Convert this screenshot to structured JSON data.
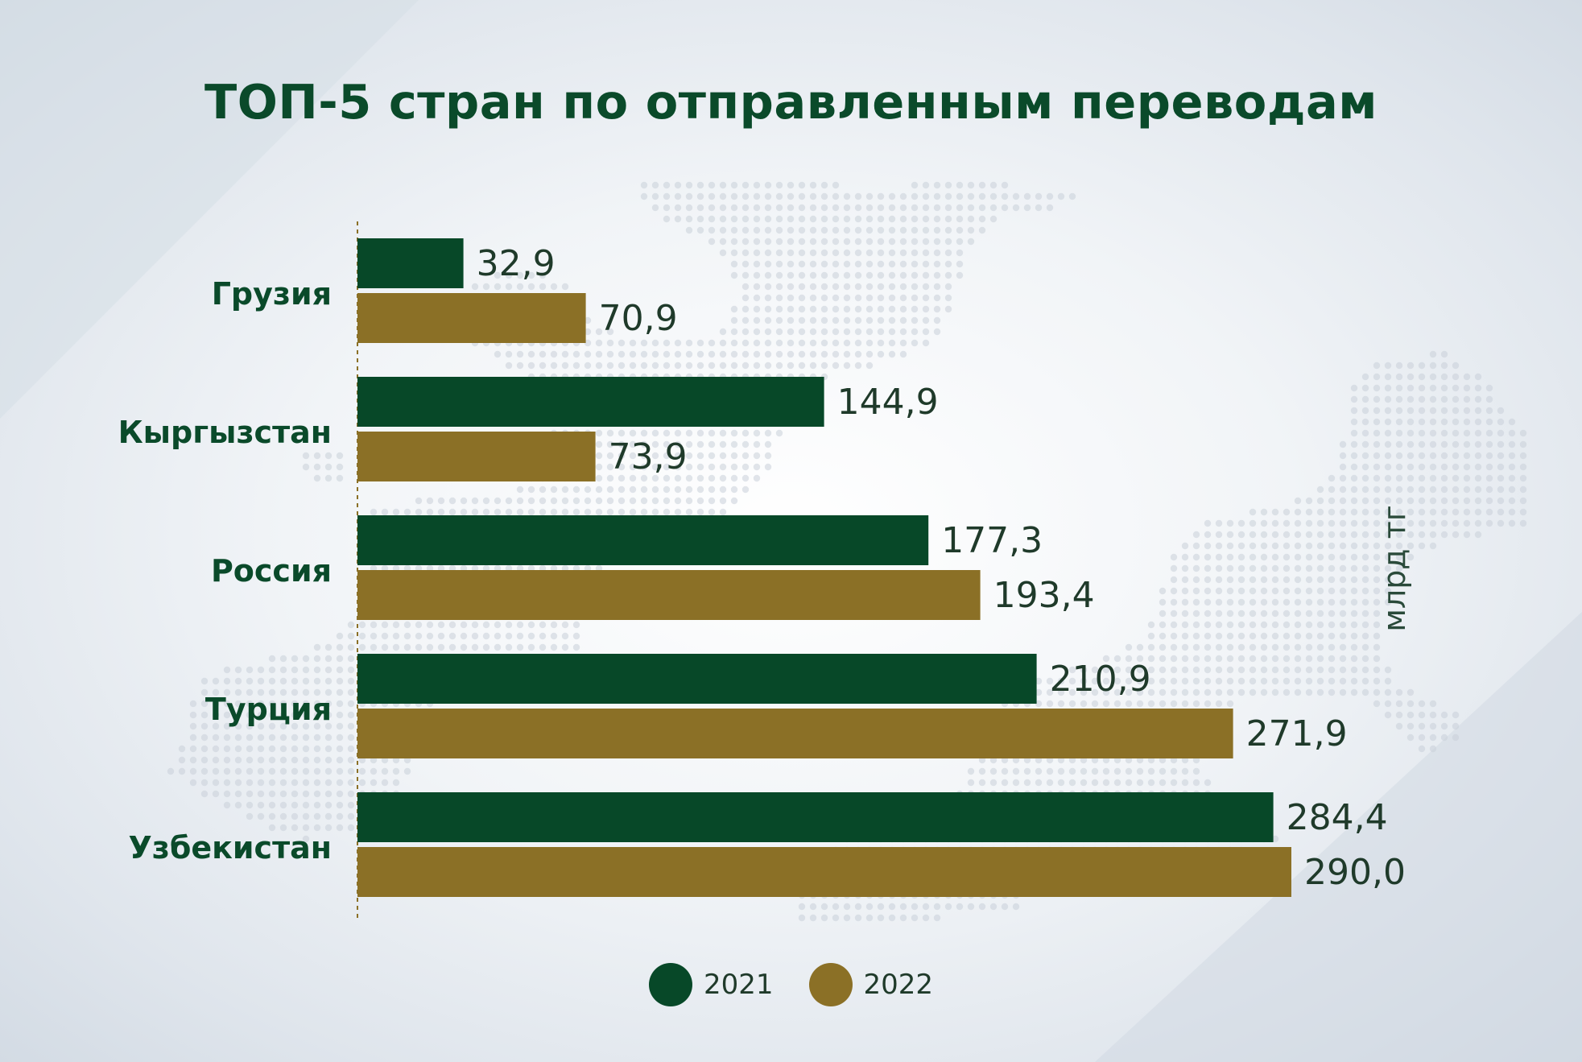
{
  "chart_data": {
    "type": "bar",
    "orientation": "horizontal",
    "title": "ТОП-5 стран по отправленным переводам",
    "unit_label": "млрд тг",
    "categories": [
      "Грузия",
      "Кыргызстан",
      "Россия",
      "Турция",
      "Узбекистан"
    ],
    "series": [
      {
        "name": "2021",
        "color": "#074828",
        "values": [
          32.9,
          144.9,
          177.3,
          210.9,
          284.4
        ],
        "labels": [
          "32,9",
          "144,9",
          "177,3",
          "210,9",
          "284,4"
        ]
      },
      {
        "name": "2022",
        "color": "#8b7026",
        "values": [
          70.9,
          73.9,
          193.4,
          271.9,
          290.0
        ],
        "labels": [
          "70,9",
          "73,9",
          "193,4",
          "271,9",
          "290,0"
        ]
      }
    ],
    "xlim": [
      0,
      290.0
    ],
    "legend_position": "bottom-center",
    "grid": false
  }
}
